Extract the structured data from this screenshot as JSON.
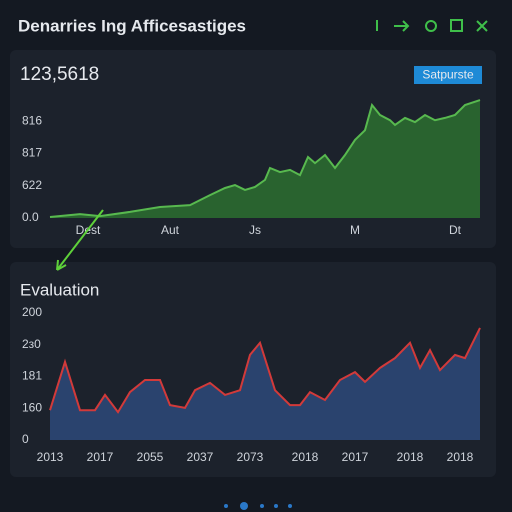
{
  "header": {
    "title": "Denarries Ing Afficesastiges",
    "metric": "123,5618",
    "button": "Satpurste"
  },
  "chart_data": [
    {
      "type": "area",
      "color": "#2b6a30",
      "line_color": "#58b94f",
      "xlim": [
        0,
        43
      ],
      "ylim": [
        0,
        3.8
      ],
      "yticks": [
        {
          "value": 0,
          "label": "0.0"
        },
        {
          "value": 1,
          "label": "622"
        },
        {
          "value": 2,
          "label": "817"
        },
        {
          "value": 3,
          "label": "816"
        }
      ],
      "xticks": [
        {
          "value": 3.8,
          "label": "Dest"
        },
        {
          "value": 12,
          "label": "Aut"
        },
        {
          "value": 20.5,
          "label": "Js"
        },
        {
          "value": 30.5,
          "label": "M"
        },
        {
          "value": 40.5,
          "label": "Dt"
        }
      ],
      "x": [
        0,
        3,
        5,
        8,
        11,
        14,
        16,
        17.5,
        18.5,
        19.5,
        20.5,
        21.5,
        22,
        23,
        24,
        25,
        25.8,
        26.5,
        27.5,
        28.5,
        29.5,
        30.5,
        31.5,
        32.2,
        33,
        34,
        34.5,
        35.5,
        36.5,
        37.5,
        38.5,
        39.5,
        40.5,
        41.5,
        43
      ],
      "values": [
        0.03,
        0.12,
        0.06,
        0.19,
        0.34,
        0.4,
        0.71,
        0.93,
        1.02,
        0.87,
        0.96,
        1.18,
        1.55,
        1.42,
        1.49,
        1.33,
        1.89,
        1.7,
        1.95,
        1.55,
        1.95,
        2.42,
        2.72,
        3.5,
        3.19,
        3.03,
        2.88,
        3.1,
        2.97,
        3.19,
        3.03,
        3.1,
        3.19,
        3.5,
        3.65
      ]
    },
    {
      "type": "area",
      "title": "Evaluation",
      "color": "#2c4775",
      "line_color": "#d23a3a",
      "xlim": [
        0,
        43
      ],
      "ylim": [
        0,
        4.4
      ],
      "yticks": [
        {
          "value": 0,
          "label": "0"
        },
        {
          "value": 1,
          "label": "160"
        },
        {
          "value": 2,
          "label": "181"
        },
        {
          "value": 3,
          "label": "2з0"
        },
        {
          "value": 4,
          "label": "200"
        }
      ],
      "xticks": [
        {
          "value": 0,
          "label": "2013"
        },
        {
          "value": 5,
          "label": "2017"
        },
        {
          "value": 10,
          "label": "2055"
        },
        {
          "value": 15,
          "label": "2037"
        },
        {
          "value": 20,
          "label": "2073"
        },
        {
          "value": 25.5,
          "label": "2018"
        },
        {
          "value": 30.5,
          "label": "2017"
        },
        {
          "value": 36,
          "label": "2018"
        },
        {
          "value": 41,
          "label": "2018"
        }
      ],
      "x": [
        0,
        1.5,
        3,
        4.5,
        5.5,
        6.8,
        8,
        9.5,
        11,
        12,
        13.5,
        14.5,
        16,
        17.5,
        19,
        20,
        21,
        22.5,
        24,
        25,
        26,
        27.5,
        29,
        30.5,
        31.5,
        33,
        34.5,
        36,
        37,
        38,
        39,
        40.5,
        41.5,
        43
      ],
      "values": [
        0.94,
        2.46,
        0.94,
        0.94,
        1.42,
        0.88,
        1.51,
        1.89,
        1.89,
        1.1,
        1.01,
        1.57,
        1.8,
        1.42,
        1.57,
        2.68,
        3.06,
        1.57,
        1.1,
        1.1,
        1.51,
        1.26,
        1.89,
        2.14,
        1.83,
        2.27,
        2.58,
        3.06,
        2.27,
        2.83,
        2.2,
        2.68,
        2.58,
        3.53
      ]
    }
  ]
}
